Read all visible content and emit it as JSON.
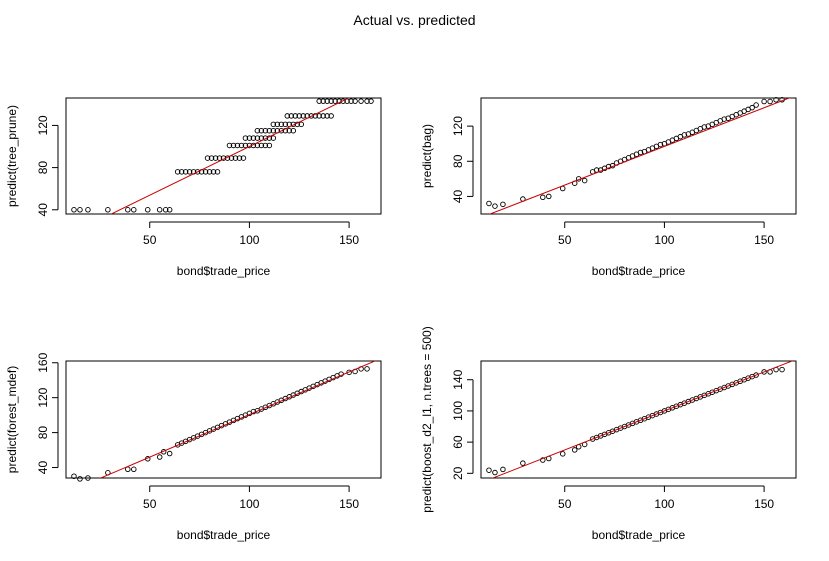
{
  "page_title": "Actual vs. predicted",
  "colors": {
    "points": "#000000",
    "fit_line": "#cc0000",
    "frame": "#000000"
  },
  "chart_data": [
    {
      "type": "scatter",
      "title": "",
      "xlabel": "bond$trade_price",
      "ylabel": "predict(tree_prune)",
      "xlim": [
        8,
        166
      ],
      "ylim": [
        36,
        146
      ],
      "xticks": [
        50,
        100,
        150
      ],
      "yticks": [
        40,
        80,
        120
      ],
      "grid": false,
      "fit_line": {
        "from": [
          8,
          15
        ],
        "to": [
          166,
          161
        ]
      },
      "points": [
        [
          12,
          40
        ],
        [
          15,
          40
        ],
        [
          19,
          40
        ],
        [
          29,
          40
        ],
        [
          39,
          40
        ],
        [
          42,
          40
        ],
        [
          49,
          40
        ],
        [
          55,
          40
        ],
        [
          58,
          40
        ],
        [
          60,
          40
        ],
        [
          64,
          76
        ],
        [
          66,
          76
        ],
        [
          68,
          76
        ],
        [
          70,
          76
        ],
        [
          72,
          76
        ],
        [
          74,
          76
        ],
        [
          76,
          76
        ],
        [
          78,
          76
        ],
        [
          80,
          76
        ],
        [
          82,
          76
        ],
        [
          84,
          76
        ],
        [
          79,
          89
        ],
        [
          81,
          89
        ],
        [
          83,
          89
        ],
        [
          85,
          89
        ],
        [
          87,
          89
        ],
        [
          89,
          89
        ],
        [
          91,
          89
        ],
        [
          93,
          89
        ],
        [
          95,
          89
        ],
        [
          97,
          89
        ],
        [
          90,
          101
        ],
        [
          92,
          101
        ],
        [
          94,
          101
        ],
        [
          96,
          101
        ],
        [
          98,
          101
        ],
        [
          100,
          101
        ],
        [
          102,
          101
        ],
        [
          104,
          101
        ],
        [
          106,
          101
        ],
        [
          108,
          101
        ],
        [
          110,
          101
        ],
        [
          98,
          108
        ],
        [
          100,
          108
        ],
        [
          102,
          108
        ],
        [
          104,
          108
        ],
        [
          106,
          108
        ],
        [
          108,
          108
        ],
        [
          110,
          108
        ],
        [
          112,
          108
        ],
        [
          104,
          115
        ],
        [
          106,
          115
        ],
        [
          108,
          115
        ],
        [
          110,
          115
        ],
        [
          112,
          115
        ],
        [
          114,
          115
        ],
        [
          116,
          115
        ],
        [
          118,
          115
        ],
        [
          120,
          115
        ],
        [
          122,
          115
        ],
        [
          112,
          121
        ],
        [
          114,
          121
        ],
        [
          116,
          121
        ],
        [
          118,
          121
        ],
        [
          120,
          121
        ],
        [
          122,
          121
        ],
        [
          124,
          121
        ],
        [
          126,
          121
        ],
        [
          119,
          129
        ],
        [
          121,
          129
        ],
        [
          123,
          129
        ],
        [
          125,
          129
        ],
        [
          127,
          129
        ],
        [
          129,
          129
        ],
        [
          131,
          129
        ],
        [
          133,
          129
        ],
        [
          135,
          129
        ],
        [
          137,
          129
        ],
        [
          139,
          129
        ],
        [
          141,
          129
        ],
        [
          135,
          143
        ],
        [
          137,
          143
        ],
        [
          139,
          143
        ],
        [
          141,
          143
        ],
        [
          143,
          143
        ],
        [
          145,
          143
        ],
        [
          147,
          143
        ],
        [
          149,
          143
        ],
        [
          151,
          143
        ],
        [
          153,
          143
        ],
        [
          156,
          143
        ],
        [
          159,
          143
        ],
        [
          161,
          143
        ]
      ]
    },
    {
      "type": "scatter",
      "title": "",
      "xlabel": "bond$trade_price",
      "ylabel": "predict(bag)",
      "xlim": [
        8,
        166
      ],
      "ylim": [
        20,
        152
      ],
      "xticks": [
        50,
        100,
        150
      ],
      "yticks": [
        40,
        80,
        120
      ],
      "grid": false,
      "fit_line": {
        "from": [
          8,
          16
        ],
        "to": [
          166,
          155
        ]
      },
      "points": [
        [
          12,
          32
        ],
        [
          15,
          29
        ],
        [
          19,
          31
        ],
        [
          29,
          37
        ],
        [
          39,
          39
        ],
        [
          42,
          40
        ],
        [
          49,
          49
        ],
        [
          55,
          55
        ],
        [
          57,
          60
        ],
        [
          60,
          58
        ],
        [
          64,
          68
        ],
        [
          66,
          70
        ],
        [
          68,
          70
        ],
        [
          70,
          72
        ],
        [
          72,
          74
        ],
        [
          74,
          75
        ],
        [
          76,
          78
        ],
        [
          78,
          80
        ],
        [
          80,
          82
        ],
        [
          82,
          84
        ],
        [
          84,
          86
        ],
        [
          86,
          88
        ],
        [
          88,
          90
        ],
        [
          90,
          91
        ],
        [
          92,
          93
        ],
        [
          94,
          95
        ],
        [
          96,
          97
        ],
        [
          98,
          99
        ],
        [
          100,
          100
        ],
        [
          102,
          102
        ],
        [
          104,
          104
        ],
        [
          106,
          106
        ],
        [
          108,
          108
        ],
        [
          110,
          110
        ],
        [
          112,
          111
        ],
        [
          114,
          113
        ],
        [
          116,
          115
        ],
        [
          118,
          117
        ],
        [
          120,
          119
        ],
        [
          122,
          120
        ],
        [
          124,
          122
        ],
        [
          126,
          124
        ],
        [
          128,
          126
        ],
        [
          130,
          128
        ],
        [
          132,
          129
        ],
        [
          134,
          131
        ],
        [
          136,
          133
        ],
        [
          138,
          135
        ],
        [
          140,
          137
        ],
        [
          142,
          139
        ],
        [
          144,
          141
        ],
        [
          146,
          144
        ],
        [
          150,
          148
        ],
        [
          153,
          148
        ],
        [
          156,
          150
        ],
        [
          159,
          150
        ]
      ]
    },
    {
      "type": "scatter",
      "title": "",
      "xlabel": "bond$trade_price",
      "ylabel": "predict(forest_mdef)",
      "xlim": [
        8,
        166
      ],
      "ylim": [
        28,
        162
      ],
      "xticks": [
        50,
        100,
        150
      ],
      "yticks": [
        40,
        80,
        120,
        160
      ],
      "grid": false,
      "fit_line": {
        "from": [
          8,
          11
        ],
        "to": [
          166,
          165
        ]
      },
      "points": [
        [
          12,
          30
        ],
        [
          15,
          27
        ],
        [
          19,
          28
        ],
        [
          29,
          34
        ],
        [
          39,
          38
        ],
        [
          42,
          38
        ],
        [
          49,
          50
        ],
        [
          55,
          52
        ],
        [
          57,
          58
        ],
        [
          60,
          56
        ],
        [
          64,
          66
        ],
        [
          66,
          68
        ],
        [
          68,
          70
        ],
        [
          70,
          72
        ],
        [
          72,
          74
        ],
        [
          74,
          76
        ],
        [
          76,
          78
        ],
        [
          78,
          80
        ],
        [
          80,
          82
        ],
        [
          82,
          84
        ],
        [
          84,
          86
        ],
        [
          86,
          88
        ],
        [
          88,
          90
        ],
        [
          90,
          92
        ],
        [
          92,
          94
        ],
        [
          94,
          96
        ],
        [
          96,
          98
        ],
        [
          98,
          100
        ],
        [
          100,
          102
        ],
        [
          102,
          104
        ],
        [
          104,
          105
        ],
        [
          106,
          107
        ],
        [
          108,
          109
        ],
        [
          110,
          111
        ],
        [
          112,
          113
        ],
        [
          114,
          115
        ],
        [
          116,
          117
        ],
        [
          118,
          119
        ],
        [
          120,
          121
        ],
        [
          122,
          123
        ],
        [
          124,
          125
        ],
        [
          126,
          127
        ],
        [
          128,
          129
        ],
        [
          130,
          131
        ],
        [
          132,
          133
        ],
        [
          134,
          135
        ],
        [
          136,
          137
        ],
        [
          138,
          139
        ],
        [
          140,
          141
        ],
        [
          142,
          143
        ],
        [
          144,
          145
        ],
        [
          146,
          147
        ],
        [
          150,
          149
        ],
        [
          153,
          150
        ],
        [
          156,
          153
        ],
        [
          159,
          153
        ]
      ]
    },
    {
      "type": "scatter",
      "title": "",
      "xlabel": "bond$trade_price",
      "ylabel": "predict(boost_d2_l1, n.trees = 500)",
      "xlim": [
        8,
        166
      ],
      "ylim": [
        14,
        164
      ],
      "xticks": [
        50,
        100,
        150
      ],
      "yticks": [
        20,
        60,
        100,
        140
      ],
      "grid": false,
      "fit_line": {
        "from": [
          8,
          8
        ],
        "to": [
          166,
          166
        ]
      },
      "points": [
        [
          12,
          24
        ],
        [
          15,
          21
        ],
        [
          19,
          25
        ],
        [
          29,
          33
        ],
        [
          39,
          37
        ],
        [
          42,
          39
        ],
        [
          49,
          45
        ],
        [
          55,
          50
        ],
        [
          57,
          54
        ],
        [
          60,
          57
        ],
        [
          64,
          64
        ],
        [
          66,
          66
        ],
        [
          68,
          68
        ],
        [
          70,
          70
        ],
        [
          72,
          72
        ],
        [
          74,
          74
        ],
        [
          76,
          76
        ],
        [
          78,
          78
        ],
        [
          80,
          80
        ],
        [
          82,
          82
        ],
        [
          84,
          84
        ],
        [
          86,
          86
        ],
        [
          88,
          88
        ],
        [
          90,
          90
        ],
        [
          92,
          92
        ],
        [
          94,
          94
        ],
        [
          96,
          96
        ],
        [
          98,
          98
        ],
        [
          100,
          100
        ],
        [
          102,
          102
        ],
        [
          104,
          104
        ],
        [
          106,
          106
        ],
        [
          108,
          108
        ],
        [
          110,
          110
        ],
        [
          112,
          112
        ],
        [
          114,
          114
        ],
        [
          116,
          116
        ],
        [
          118,
          118
        ],
        [
          120,
          120
        ],
        [
          122,
          122
        ],
        [
          124,
          124
        ],
        [
          126,
          126
        ],
        [
          128,
          128
        ],
        [
          130,
          130
        ],
        [
          132,
          132
        ],
        [
          134,
          134
        ],
        [
          136,
          136
        ],
        [
          138,
          138
        ],
        [
          140,
          140
        ],
        [
          142,
          142
        ],
        [
          144,
          144
        ],
        [
          146,
          146
        ],
        [
          150,
          150
        ],
        [
          153,
          150
        ],
        [
          156,
          153
        ],
        [
          159,
          153
        ]
      ]
    }
  ]
}
